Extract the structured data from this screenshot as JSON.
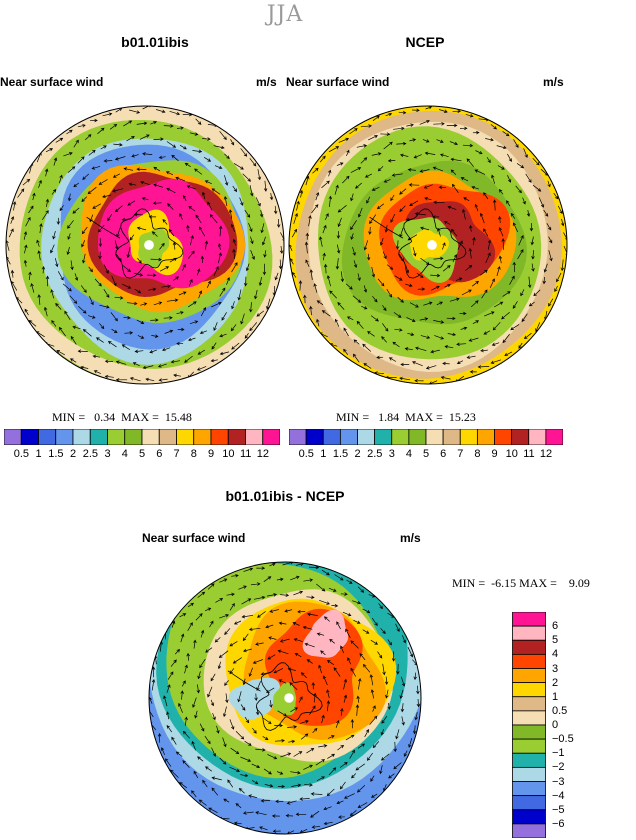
{
  "season": "JJA",
  "panels": [
    {
      "title": "b01.01ibis",
      "left_label": "Near surface wind",
      "units": "m/s",
      "min_label": "MIN =",
      "min": "0.34",
      "max_label": "MAX =",
      "max": "15.48"
    },
    {
      "title": "NCEP",
      "left_label": "Near surface wind",
      "units": "m/s",
      "min_label": "MIN =",
      "min": "1.84",
      "max_label": "MAX =",
      "max": "15.23"
    },
    {
      "title": "b01.01ibis - NCEP",
      "left_label": "Near surface wind",
      "units": "m/s",
      "min_label": "MIN =",
      "min": "-6.15",
      "max_label": "MAX =",
      "max": "9.09"
    }
  ],
  "abs_colorbar": {
    "colors": [
      "#9370db",
      "#0000cd",
      "#4169e1",
      "#6495ed",
      "#add8e6",
      "#20b2aa",
      "#9acd32",
      "#80b828",
      "#f5deb3",
      "#deb887",
      "#ffd700",
      "#ffa500",
      "#ff4500",
      "#b22222",
      "#ffb6c1",
      "#ff1493"
    ],
    "labels": [
      "0.5",
      "1",
      "1.5",
      "2",
      "2.5",
      "3",
      "4",
      "5",
      "6",
      "7",
      "8",
      "9",
      "10",
      "11",
      "12"
    ]
  },
  "diff_colorbar": {
    "colors": [
      "#ff1493",
      "#ffb6c1",
      "#b22222",
      "#ff4500",
      "#ffa500",
      "#ffd700",
      "#deb887",
      "#f5deb3",
      "#80b828",
      "#9acd32",
      "#20b2aa",
      "#add8e6",
      "#6495ed",
      "#4169e1",
      "#0000cd",
      "#9370db"
    ],
    "labels": [
      "6",
      "5",
      "4",
      "3",
      "2",
      "1",
      "0.5",
      "0",
      "−0.5",
      "−1",
      "−2",
      "−3",
      "−4",
      "−5",
      "−6"
    ]
  },
  "chart_data": [
    {
      "type": "heatmap",
      "projection": "polar stereographic (south pole)",
      "field": "near surface wind speed",
      "title": "b01.01ibis",
      "units": "m/s",
      "min": 0.34,
      "max": 15.48,
      "levels": [
        0.5,
        1,
        1.5,
        2,
        2.5,
        3,
        4,
        5,
        6,
        7,
        8,
        9,
        10,
        11,
        12
      ]
    },
    {
      "type": "heatmap",
      "projection": "polar stereographic (south pole)",
      "field": "near surface wind speed",
      "title": "NCEP",
      "units": "m/s",
      "min": 1.84,
      "max": 15.23,
      "levels": [
        0.5,
        1,
        1.5,
        2,
        2.5,
        3,
        4,
        5,
        6,
        7,
        8,
        9,
        10,
        11,
        12
      ]
    },
    {
      "type": "heatmap",
      "projection": "polar stereographic (south pole)",
      "field": "near surface wind speed difference",
      "title": "b01.01ibis - NCEP",
      "units": "m/s",
      "min": -6.15,
      "max": 9.09,
      "levels": [
        -6,
        -5,
        -4,
        -3,
        -2,
        -1,
        -0.5,
        0,
        0.5,
        1,
        2,
        3,
        4,
        5,
        6
      ]
    }
  ]
}
